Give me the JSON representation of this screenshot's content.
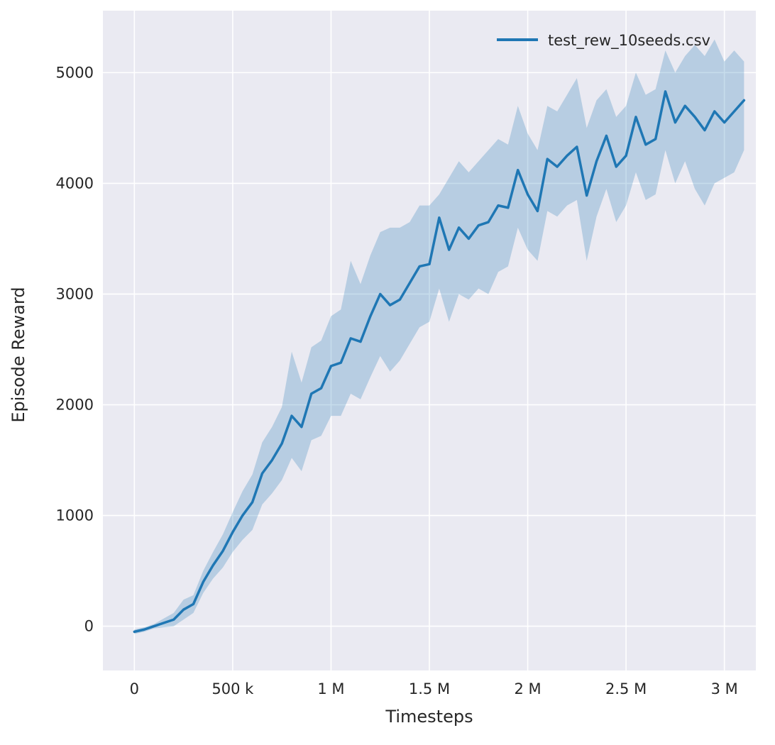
{
  "chart_data": {
    "type": "line",
    "title": "",
    "xlabel": "Timesteps",
    "ylabel": "Episode Reward",
    "grid": true,
    "background": "#eaeaf2",
    "grid_color": "#ffffff",
    "tick_color": "#262626",
    "xlim": [
      -160000,
      3160000
    ],
    "ylim": [
      -400,
      5560
    ],
    "xticks": [
      {
        "value": 0,
        "label": "0"
      },
      {
        "value": 500000,
        "label": "500 k"
      },
      {
        "value": 1000000,
        "label": "1 M"
      },
      {
        "value": 1500000,
        "label": "1.5 M"
      },
      {
        "value": 2000000,
        "label": "2 M"
      },
      {
        "value": 2500000,
        "label": "2.5 M"
      },
      {
        "value": 3000000,
        "label": "3 M"
      }
    ],
    "yticks": [
      {
        "value": 0,
        "label": "0"
      },
      {
        "value": 1000,
        "label": "1000"
      },
      {
        "value": 2000,
        "label": "2000"
      },
      {
        "value": 3000,
        "label": "3000"
      },
      {
        "value": 4000,
        "label": "4000"
      },
      {
        "value": 5000,
        "label": "5000"
      }
    ],
    "legend": {
      "position": "upper right",
      "entries": [
        {
          "label": "test_rew_10seeds.csv",
          "color": "#1f77b4"
        }
      ]
    },
    "series": [
      {
        "name": "test_rew_10seeds.csv",
        "color": "#1f77b4",
        "band_opacity": 0.25,
        "x": [
          0,
          50000,
          100000,
          150000,
          200000,
          250000,
          300000,
          350000,
          400000,
          450000,
          500000,
          550000,
          600000,
          650000,
          700000,
          750000,
          800000,
          850000,
          900000,
          950000,
          1000000,
          1050000,
          1100000,
          1150000,
          1200000,
          1250000,
          1300000,
          1350000,
          1400000,
          1450000,
          1500000,
          1550000,
          1600000,
          1650000,
          1700000,
          1750000,
          1800000,
          1850000,
          1900000,
          1950000,
          2000000,
          2050000,
          2100000,
          2150000,
          2200000,
          2250000,
          2300000,
          2350000,
          2400000,
          2450000,
          2500000,
          2550000,
          2600000,
          2650000,
          2700000,
          2750000,
          2800000,
          2850000,
          2900000,
          2950000,
          3000000,
          3050000,
          3100000
        ],
        "mean": [
          -50,
          -30,
          0,
          30,
          60,
          150,
          200,
          400,
          550,
          680,
          850,
          1000,
          1120,
          1380,
          1500,
          1650,
          1900,
          1800,
          2100,
          2150,
          2350,
          2380,
          2600,
          2570,
          2800,
          3000,
          2900,
          2950,
          3100,
          3250,
          3270,
          3690,
          3400,
          3600,
          3500,
          3620,
          3650,
          3800,
          3780,
          4120,
          3900,
          3750,
          4220,
          4150,
          4250,
          4330,
          3890,
          4200,
          4430,
          4150,
          4250,
          4600,
          4350,
          4400,
          4830,
          4550,
          4700,
          4600,
          4480,
          4650,
          4550,
          4650,
          4750
        ],
        "band_lower": [
          -70,
          -50,
          -20,
          -10,
          0,
          60,
          120,
          300,
          430,
          530,
          670,
          780,
          870,
          1100,
          1200,
          1320,
          1520,
          1400,
          1680,
          1720,
          1900,
          1900,
          2100,
          2050,
          2250,
          2440,
          2300,
          2400,
          2550,
          2700,
          2750,
          3050,
          2750,
          3000,
          2950,
          3050,
          3000,
          3200,
          3250,
          3600,
          3400,
          3300,
          3750,
          3700,
          3800,
          3850,
          3300,
          3700,
          3950,
          3650,
          3800,
          4100,
          3850,
          3900,
          4300,
          4000,
          4200,
          3950,
          3800,
          4000,
          4050,
          4100,
          4300
        ],
        "band_upper": [
          -30,
          -10,
          20,
          70,
          120,
          240,
          280,
          500,
          670,
          830,
          1030,
          1220,
          1370,
          1660,
          1800,
          1980,
          2480,
          2200,
          2520,
          2580,
          2800,
          2860,
          3300,
          3090,
          3350,
          3560,
          3600,
          3600,
          3650,
          3800,
          3800,
          3900,
          4050,
          4200,
          4100,
          4200,
          4300,
          4400,
          4350,
          4700,
          4450,
          4300,
          4700,
          4650,
          4800,
          4950,
          4500,
          4750,
          4850,
          4600,
          4700,
          5000,
          4800,
          4850,
          5200,
          5000,
          5150,
          5250,
          5150,
          5300,
          5100,
          5200,
          5100
        ]
      }
    ]
  }
}
